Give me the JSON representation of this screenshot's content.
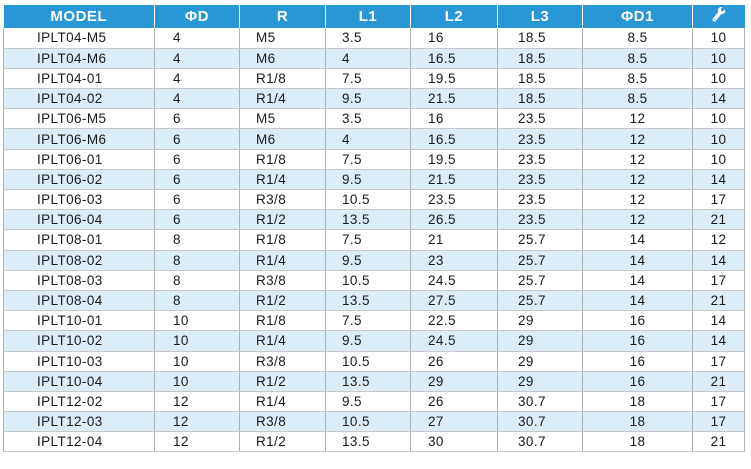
{
  "table": {
    "headers": [
      "MODEL",
      "ΦD",
      "R",
      "L1",
      "L2",
      "L3",
      "ΦD1",
      ""
    ],
    "last_header_icon": "wrench-icon",
    "header_color": "#2997d6",
    "alt_row_color": "#dcedf8",
    "rows": [
      [
        "IPLT04-M5",
        "4",
        "M5",
        "3.5",
        "16",
        "18.5",
        "8.5",
        "10"
      ],
      [
        "IPLT04-M6",
        "4",
        "M6",
        "4",
        "16.5",
        "18.5",
        "8.5",
        "10"
      ],
      [
        "IPLT04-01",
        "4",
        "R1/8",
        "7.5",
        "19.5",
        "18.5",
        "8.5",
        "10"
      ],
      [
        "IPLT04-02",
        "4",
        "R1/4",
        "9.5",
        "21.5",
        "18.5",
        "8.5",
        "14"
      ],
      [
        "IPLT06-M5",
        "6",
        "M5",
        "3.5",
        "16",
        "23.5",
        "12",
        "10"
      ],
      [
        "IPLT06-M6",
        "6",
        "M6",
        "4",
        "16.5",
        "23.5",
        "12",
        "10"
      ],
      [
        "IPLT06-01",
        "6",
        "R1/8",
        "7.5",
        "19.5",
        "23.5",
        "12",
        "10"
      ],
      [
        "IPLT06-02",
        "6",
        "R1/4",
        "9.5",
        "21.5",
        "23.5",
        "12",
        "14"
      ],
      [
        "IPLT06-03",
        "6",
        "R3/8",
        "10.5",
        "23.5",
        "23.5",
        "12",
        "17"
      ],
      [
        "IPLT06-04",
        "6",
        "R1/2",
        "13.5",
        "26.5",
        "23.5",
        "12",
        "21"
      ],
      [
        "IPLT08-01",
        "8",
        "R1/8",
        "7.5",
        "21",
        "25.7",
        "14",
        "12"
      ],
      [
        "IPLT08-02",
        "8",
        "R1/4",
        "9.5",
        "23",
        "25.7",
        "14",
        "14"
      ],
      [
        "IPLT08-03",
        "8",
        "R3/8",
        "10.5",
        "24.5",
        "25.7",
        "14",
        "17"
      ],
      [
        "IPLT08-04",
        "8",
        "R1/2",
        "13.5",
        "27.5",
        "25.7",
        "14",
        "21"
      ],
      [
        "IPLT10-01",
        "10",
        "R1/8",
        "7.5",
        "22.5",
        "29",
        "16",
        "14"
      ],
      [
        "IPLT10-02",
        "10",
        "R1/4",
        "9.5",
        "24.5",
        "29",
        "16",
        "14"
      ],
      [
        "IPLT10-03",
        "10",
        "R3/8",
        "10.5",
        "26",
        "29",
        "16",
        "17"
      ],
      [
        "IPLT10-04",
        "10",
        "R1/2",
        "13.5",
        "29",
        "29",
        "16",
        "21"
      ],
      [
        "IPLT12-02",
        "12",
        "R1/4",
        "9.5",
        "26",
        "30.7",
        "18",
        "17"
      ],
      [
        "IPLT12-03",
        "12",
        "R3/8",
        "10.5",
        "27",
        "30.7",
        "18",
        "17"
      ],
      [
        "IPLT12-04",
        "12",
        "R1/2",
        "13.5",
        "30",
        "30.7",
        "18",
        "21"
      ]
    ]
  }
}
